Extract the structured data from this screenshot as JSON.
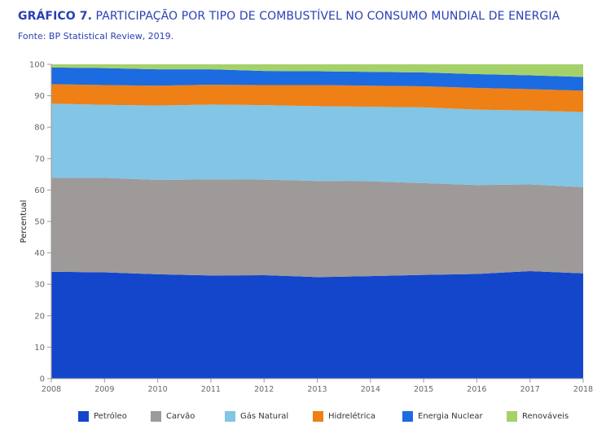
{
  "header": {
    "title_prefix": "GRÁFICO 7.",
    "title_text": " PARTICIPAÇÃO POR TIPO DE COMBUSTÍVEL NO CONSUMO MUNDIAL DE ENERGIA",
    "source": "Fonte: BP Statistical Review, 2019."
  },
  "chart_data": {
    "type": "area",
    "stacked": true,
    "x": [
      2008,
      2009,
      2010,
      2011,
      2012,
      2013,
      2014,
      2015,
      2016,
      2017,
      2018
    ],
    "ylabel": "Percentual",
    "ylim": [
      0,
      100
    ],
    "yticks": [
      0,
      10,
      20,
      30,
      40,
      50,
      60,
      70,
      80,
      90,
      100
    ],
    "grid": false,
    "legend_position": "bottom",
    "series": [
      {
        "name": "Petróleo",
        "color": "#1446cc",
        "values": [
          34.0,
          33.8,
          33.2,
          32.8,
          32.9,
          32.3,
          32.6,
          33.0,
          33.3,
          34.2,
          33.5
        ]
      },
      {
        "name": "Carvão",
        "color": "#9e9a9a",
        "values": [
          29.9,
          30.1,
          30.0,
          30.6,
          30.4,
          30.6,
          30.2,
          29.2,
          28.3,
          27.6,
          27.4
        ]
      },
      {
        "name": "Gás Natural",
        "color": "#82c5e4",
        "values": [
          23.6,
          23.2,
          23.7,
          23.8,
          23.7,
          23.8,
          23.7,
          24.1,
          24.0,
          23.5,
          23.9
        ]
      },
      {
        "name": "Hidrelétrica",
        "color": "#ee8015",
        "values": [
          6.2,
          6.3,
          6.3,
          6.3,
          6.4,
          6.7,
          6.7,
          6.7,
          6.9,
          6.8,
          6.8
        ]
      },
      {
        "name": "Energia Nuclear",
        "color": "#1c6be0",
        "values": [
          5.3,
          5.4,
          5.2,
          4.9,
          4.5,
          4.4,
          4.4,
          4.4,
          4.4,
          4.4,
          4.4
        ]
      },
      {
        "name": "Renováveis",
        "color": "#a5d16a",
        "values": [
          1.0,
          1.2,
          1.6,
          1.6,
          2.1,
          2.2,
          2.4,
          2.6,
          3.1,
          3.5,
          4.0
        ]
      }
    ]
  }
}
